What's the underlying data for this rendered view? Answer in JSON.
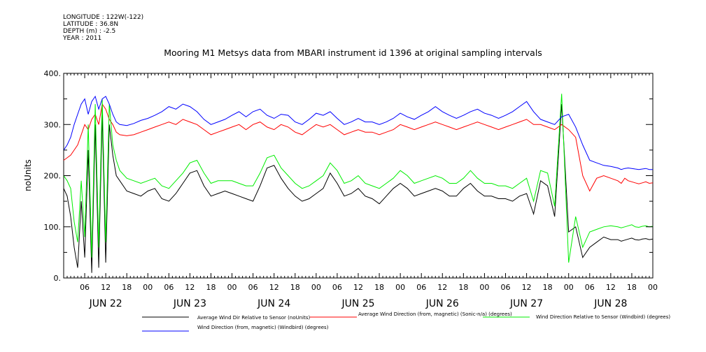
{
  "header": {
    "longitude": "LONGITUDE : 122W(-122)",
    "latitude": "LATITUDE : 36.8N",
    "depth": "DEPTH (m) : -2.5",
    "year": "YEAR : 2011",
    "title": "Mooring M1 Metsys data from MBARI instrument id 1396 at original sampling intervals"
  },
  "chart_data": {
    "type": "line",
    "title": "Mooring M1 Metsys data from MBARI instrument id 1396 at original sampling intervals",
    "ylabel": "noUnits",
    "xlabel": "",
    "ylim": [
      0,
      400
    ],
    "xlim": [
      0,
      168
    ],
    "x_units": "hours after JUN 22 00:00 2011",
    "y_ticks": [
      "0.",
      "100.",
      "200.",
      "300.",
      "400."
    ],
    "y_tick_values": [
      0,
      100,
      200,
      300,
      400
    ],
    "x_hour_ticks": [
      "06",
      "12",
      "18",
      "00",
      "06",
      "12",
      "18",
      "00",
      "06",
      "12",
      "18",
      "00",
      "06",
      "12",
      "18",
      "00",
      "06",
      "12",
      "18",
      "00",
      "06",
      "12",
      "18",
      "00",
      "06",
      "12",
      "18",
      "00"
    ],
    "x_hour_tick_values": [
      6,
      12,
      18,
      24,
      30,
      36,
      42,
      48,
      54,
      60,
      66,
      72,
      78,
      84,
      90,
      96,
      102,
      108,
      114,
      120,
      126,
      132,
      138,
      144,
      150,
      156,
      162,
      168
    ],
    "day_labels": [
      "JUN 22",
      "JUN 23",
      "JUN 24",
      "JUN 25",
      "JUN 26",
      "JUN 27",
      "JUN 28"
    ],
    "day_label_centers": [
      12,
      36,
      60,
      84,
      108,
      132,
      156
    ],
    "grid": false,
    "legend_position": "bottom",
    "series": [
      {
        "name": "Average Wind Dir Relative to Sensor (noUnits)",
        "color": "#000000",
        "x": [
          0,
          1,
          2,
          3,
          4,
          5,
          6,
          7,
          8,
          9,
          10,
          11,
          12,
          13,
          14,
          15,
          16,
          18,
          20,
          22,
          24,
          26,
          28,
          30,
          32,
          34,
          36,
          38,
          40,
          42,
          44,
          46,
          48,
          50,
          52,
          54,
          56,
          58,
          60,
          62,
          64,
          66,
          68,
          70,
          72,
          74,
          76,
          78,
          80,
          82,
          84,
          86,
          88,
          90,
          92,
          94,
          96,
          98,
          100,
          102,
          104,
          106,
          108,
          110,
          112,
          114,
          116,
          118,
          120,
          122,
          124,
          126,
          128,
          130,
          132,
          134,
          136,
          138,
          140,
          142,
          144,
          146,
          148,
          150,
          152,
          154,
          156,
          158,
          159,
          160,
          161,
          162,
          163,
          164,
          165,
          166,
          167,
          168
        ],
        "y": [
          175,
          160,
          120,
          60,
          20,
          150,
          40,
          250,
          10,
          300,
          20,
          320,
          30,
          300,
          240,
          200,
          190,
          170,
          165,
          160,
          170,
          175,
          155,
          150,
          165,
          185,
          205,
          210,
          180,
          160,
          165,
          170,
          165,
          160,
          155,
          150,
          180,
          215,
          220,
          195,
          175,
          160,
          150,
          155,
          165,
          175,
          205,
          185,
          160,
          165,
          175,
          160,
          155,
          145,
          160,
          175,
          185,
          175,
          160,
          165,
          170,
          175,
          170,
          160,
          160,
          175,
          185,
          170,
          160,
          160,
          155,
          155,
          150,
          160,
          165,
          125,
          190,
          180,
          120,
          340,
          90,
          100,
          40,
          60,
          70,
          80,
          75,
          75,
          72,
          74,
          76,
          78,
          75,
          74,
          76,
          77,
          75,
          76
        ]
      },
      {
        "name": "Average Wind Direction (from, magnetic) (Sonic-n/a) (degrees)",
        "color": "#ff0000",
        "x": [
          0,
          1,
          2,
          3,
          4,
          5,
          6,
          7,
          8,
          9,
          10,
          11,
          12,
          13,
          14,
          15,
          16,
          18,
          20,
          22,
          24,
          26,
          28,
          30,
          32,
          34,
          36,
          38,
          40,
          42,
          44,
          46,
          48,
          50,
          52,
          54,
          56,
          58,
          60,
          62,
          64,
          66,
          68,
          70,
          72,
          74,
          76,
          78,
          80,
          82,
          84,
          86,
          88,
          90,
          92,
          94,
          96,
          98,
          100,
          102,
          104,
          106,
          108,
          110,
          112,
          114,
          116,
          118,
          120,
          122,
          124,
          126,
          128,
          130,
          132,
          134,
          136,
          138,
          140,
          142,
          144,
          146,
          148,
          150,
          152,
          154,
          156,
          158,
          159,
          160,
          161,
          162,
          163,
          164,
          165,
          166,
          167,
          168
        ],
        "y": [
          230,
          235,
          240,
          250,
          260,
          280,
          300,
          290,
          310,
          320,
          300,
          340,
          330,
          310,
          300,
          285,
          280,
          278,
          280,
          285,
          290,
          295,
          300,
          305,
          300,
          310,
          305,
          300,
          290,
          280,
          285,
          290,
          295,
          300,
          290,
          300,
          305,
          295,
          290,
          300,
          295,
          285,
          280,
          290,
          300,
          295,
          300,
          290,
          280,
          285,
          290,
          285,
          285,
          280,
          285,
          290,
          300,
          295,
          290,
          295,
          300,
          305,
          300,
          295,
          290,
          295,
          300,
          305,
          300,
          295,
          290,
          295,
          300,
          305,
          310,
          300,
          300,
          295,
          290,
          300,
          290,
          275,
          200,
          170,
          195,
          200,
          195,
          190,
          185,
          195,
          190,
          188,
          186,
          184,
          186,
          188,
          185,
          186
        ]
      },
      {
        "name": "Wind Direction Relative to Sensor (Windbird) (degrees)",
        "color": "#00ee00",
        "x": [
          0,
          1,
          2,
          3,
          4,
          5,
          6,
          7,
          8,
          9,
          10,
          11,
          12,
          13,
          14,
          15,
          16,
          18,
          20,
          22,
          24,
          26,
          28,
          30,
          32,
          34,
          36,
          38,
          40,
          42,
          44,
          46,
          48,
          50,
          52,
          54,
          56,
          58,
          60,
          62,
          64,
          66,
          68,
          70,
          72,
          74,
          76,
          78,
          80,
          82,
          84,
          86,
          88,
          90,
          92,
          94,
          96,
          98,
          100,
          102,
          104,
          106,
          108,
          110,
          112,
          114,
          116,
          118,
          120,
          122,
          124,
          126,
          128,
          130,
          132,
          134,
          136,
          138,
          140,
          142,
          144,
          146,
          148,
          150,
          152,
          154,
          156,
          158,
          159,
          160,
          161,
          162,
          163,
          164,
          165,
          166,
          167,
          168
        ],
        "y": [
          200,
          190,
          175,
          110,
          70,
          190,
          80,
          300,
          40,
          340,
          60,
          350,
          70,
          340,
          260,
          230,
          210,
          195,
          190,
          185,
          190,
          195,
          180,
          175,
          190,
          205,
          225,
          230,
          205,
          185,
          190,
          190,
          190,
          185,
          180,
          180,
          205,
          235,
          240,
          215,
          200,
          185,
          175,
          180,
          190,
          200,
          225,
          210,
          185,
          190,
          200,
          185,
          180,
          175,
          185,
          195,
          210,
          200,
          185,
          190,
          195,
          200,
          195,
          185,
          185,
          195,
          210,
          195,
          185,
          185,
          180,
          180,
          175,
          185,
          195,
          150,
          210,
          205,
          140,
          360,
          30,
          120,
          60,
          90,
          95,
          100,
          102,
          100,
          98,
          100,
          102,
          104,
          100,
          99,
          101,
          102,
          100,
          101
        ]
      },
      {
        "name": "Wind Direction (from, magnetic) (Windbird) (degrees)",
        "color": "#0000ff",
        "x": [
          0,
          1,
          2,
          3,
          4,
          5,
          6,
          7,
          8,
          9,
          10,
          11,
          12,
          13,
          14,
          15,
          16,
          18,
          20,
          22,
          24,
          26,
          28,
          30,
          32,
          34,
          36,
          38,
          40,
          42,
          44,
          46,
          48,
          50,
          52,
          54,
          56,
          58,
          60,
          62,
          64,
          66,
          68,
          70,
          72,
          74,
          76,
          78,
          80,
          82,
          84,
          86,
          88,
          90,
          92,
          94,
          96,
          98,
          100,
          102,
          104,
          106,
          108,
          110,
          112,
          114,
          116,
          118,
          120,
          122,
          124,
          126,
          128,
          130,
          132,
          134,
          136,
          138,
          140,
          142,
          144,
          146,
          148,
          150,
          152,
          154,
          156,
          158,
          159,
          160,
          161,
          162,
          163,
          164,
          165,
          166,
          167,
          168
        ],
        "y": [
          250,
          260,
          275,
          300,
          320,
          340,
          350,
          320,
          345,
          355,
          330,
          350,
          355,
          340,
          320,
          305,
          300,
          298,
          302,
          308,
          312,
          318,
          325,
          335,
          330,
          340,
          335,
          325,
          310,
          300,
          305,
          310,
          318,
          325,
          315,
          325,
          330,
          318,
          312,
          320,
          318,
          305,
          300,
          310,
          322,
          318,
          325,
          312,
          300,
          305,
          312,
          305,
          305,
          300,
          305,
          312,
          322,
          315,
          310,
          318,
          325,
          335,
          325,
          318,
          312,
          318,
          325,
          330,
          322,
          318,
          312,
          318,
          325,
          335,
          345,
          325,
          310,
          305,
          300,
          315,
          320,
          295,
          260,
          230,
          225,
          220,
          218,
          215,
          212,
          214,
          215,
          214,
          213,
          212,
          213,
          214,
          212,
          212
        ]
      }
    ]
  }
}
